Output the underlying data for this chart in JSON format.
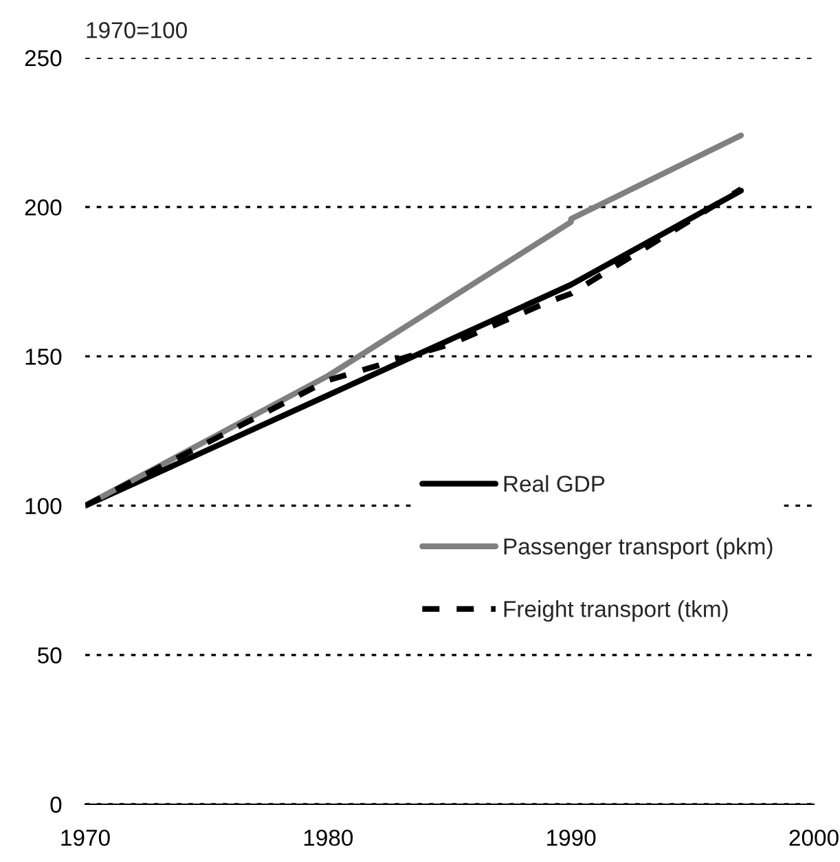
{
  "chart_data": {
    "type": "line",
    "ylabel": "1970=100",
    "xlim": [
      1970,
      2000
    ],
    "xticks": [
      1970,
      1980,
      1990,
      2000
    ],
    "ylim": [
      0,
      250
    ],
    "yticks": [
      0,
      50,
      100,
      150,
      200,
      250
    ],
    "grid": "y",
    "legend": "bottom right",
    "series": [
      {
        "name": "Real GDP",
        "color": "#000000",
        "line_style": "solid",
        "x": [
          1970,
          1980,
          1990,
          1997
        ],
        "values": [
          100,
          137,
          174,
          205.5
        ]
      },
      {
        "name": "Passenger transport (pkm)",
        "color": "#808080",
        "line_style": "solid",
        "x": [
          1970,
          1980,
          1990,
          1990,
          1997
        ],
        "values": [
          100,
          143.5,
          195,
          196,
          224
        ]
      },
      {
        "name": "Freight transport (tkm)",
        "color": "#000000",
        "line_style": "dashed",
        "x": [
          1970,
          1980,
          1985,
          1989,
          1990,
          1997
        ],
        "values": [
          100,
          142,
          154,
          168,
          171,
          206
        ]
      }
    ]
  }
}
